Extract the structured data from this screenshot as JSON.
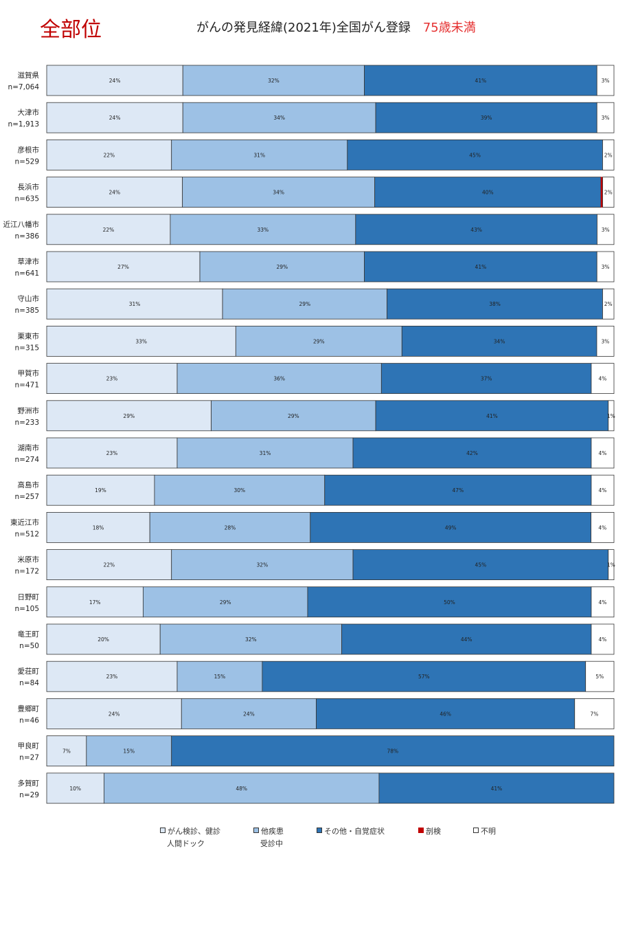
{
  "header": {
    "site_label": "全部位",
    "title": "がんの発見経緯(2021年)全国がん登録",
    "subtitle": "75歳未満"
  },
  "colors": {
    "screening": "#dde8f5",
    "other_disease": "#9dc1e5",
    "other_symptom": "#2e74b5",
    "autopsy": "#c00000",
    "unknown": "#ffffff",
    "border": "#333333",
    "title_accent": "#e53030"
  },
  "chart_data": {
    "type": "bar",
    "orientation": "horizontal",
    "stacked": "percent",
    "categories": [
      "滋賀県",
      "大津市",
      "彦根市",
      "長浜市",
      "近江八幡市",
      "草津市",
      "守山市",
      "栗東市",
      "甲賀市",
      "野洲市",
      "湖南市",
      "高島市",
      "東近江市",
      "米原市",
      "日野町",
      "竜王町",
      "愛荘町",
      "豊郷町",
      "甲良町",
      "多賀町"
    ],
    "n_labels": [
      "n=7,064",
      "n=1,913",
      "n=529",
      "n=635",
      "n=386",
      "n=641",
      "n=385",
      "n=315",
      "n=471",
      "n=233",
      "n=274",
      "n=257",
      "n=512",
      "n=172",
      "n=105",
      "n=50",
      "n=84",
      "n=46",
      "n=27",
      "n=29"
    ],
    "series": [
      {
        "name": "がん検診、健診\n人間ドック",
        "key": "screening",
        "values": [
          24,
          24,
          22,
          24,
          22,
          27,
          31,
          33,
          23,
          29,
          23,
          19,
          18,
          22,
          17,
          20,
          23,
          24,
          7,
          10
        ]
      },
      {
        "name": "他疾患\n受診中",
        "key": "other_disease",
        "values": [
          32,
          34,
          31,
          34,
          33,
          29,
          29,
          29,
          36,
          29,
          31,
          30,
          28,
          32,
          29,
          32,
          15,
          24,
          15,
          48
        ]
      },
      {
        "name": "その他・自覚症状",
        "key": "other_symptom",
        "values": [
          41,
          39,
          45,
          40,
          43,
          41,
          38,
          34,
          37,
          41,
          42,
          47,
          49,
          45,
          50,
          44,
          57,
          46,
          78,
          41
        ]
      },
      {
        "name": "剖検",
        "key": "autopsy",
        "values": [
          0,
          0,
          0,
          0.3,
          0,
          0,
          0,
          0,
          0,
          0,
          0,
          0,
          0,
          0,
          0,
          0,
          0,
          0,
          0,
          0
        ]
      },
      {
        "name": "不明",
        "key": "unknown",
        "values": [
          3,
          3,
          2,
          2,
          3,
          3,
          2,
          3,
          4,
          1,
          4,
          4,
          4,
          1,
          4,
          4,
          5,
          7,
          0,
          0
        ]
      }
    ],
    "xlim": [
      0,
      100
    ],
    "legend_position": "bottom",
    "grid": false
  }
}
